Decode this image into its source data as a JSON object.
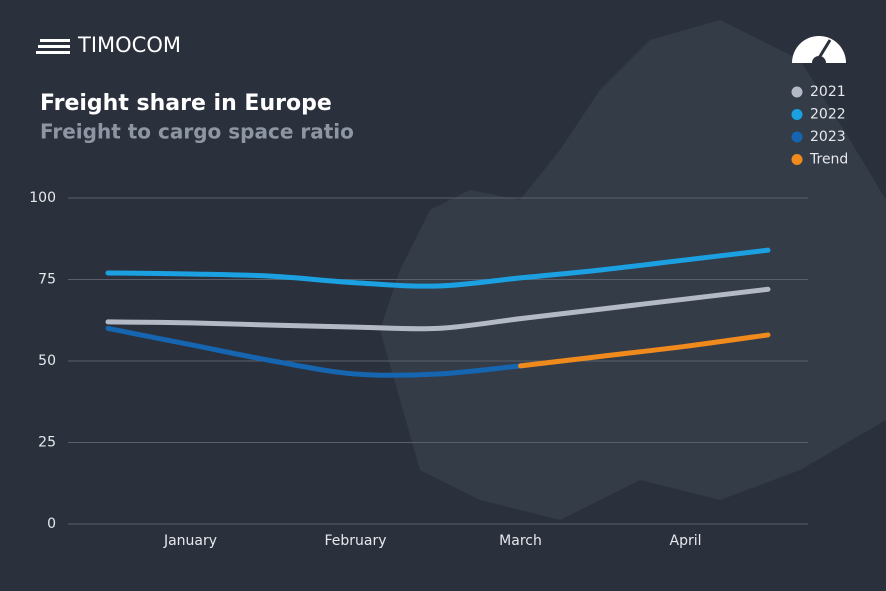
{
  "brand": "TIMOCOM",
  "chart_data": {
    "type": "line",
    "title": "Freight share in Europe",
    "subtitle": "Freight to cargo space ratio",
    "categories": [
      null,
      "January",
      null,
      "February",
      null,
      "March",
      null,
      "April",
      null
    ],
    "series": [
      {
        "name": "2021",
        "color": "#b4b9c6",
        "values": [
          62,
          61.7,
          61,
          60.4,
          60,
          63,
          66,
          69,
          72
        ]
      },
      {
        "name": "2022",
        "color": "#1ba1e2",
        "values": [
          77,
          76.7,
          76,
          74,
          73,
          75.5,
          78,
          81,
          84
        ]
      },
      {
        "name": "2023",
        "color": "#1565b0",
        "values": [
          60,
          55,
          50,
          46,
          46,
          48.5,
          null,
          null,
          null
        ]
      },
      {
        "name": "Trend",
        "color": "#f08a1c",
        "values": [
          null,
          null,
          null,
          null,
          null,
          48.5,
          51.5,
          54.5,
          58
        ]
      }
    ],
    "ylim": [
      0,
      100
    ],
    "yticks": [
      0,
      25,
      50,
      75,
      100
    ],
    "grid": true,
    "legend": "top-right"
  }
}
